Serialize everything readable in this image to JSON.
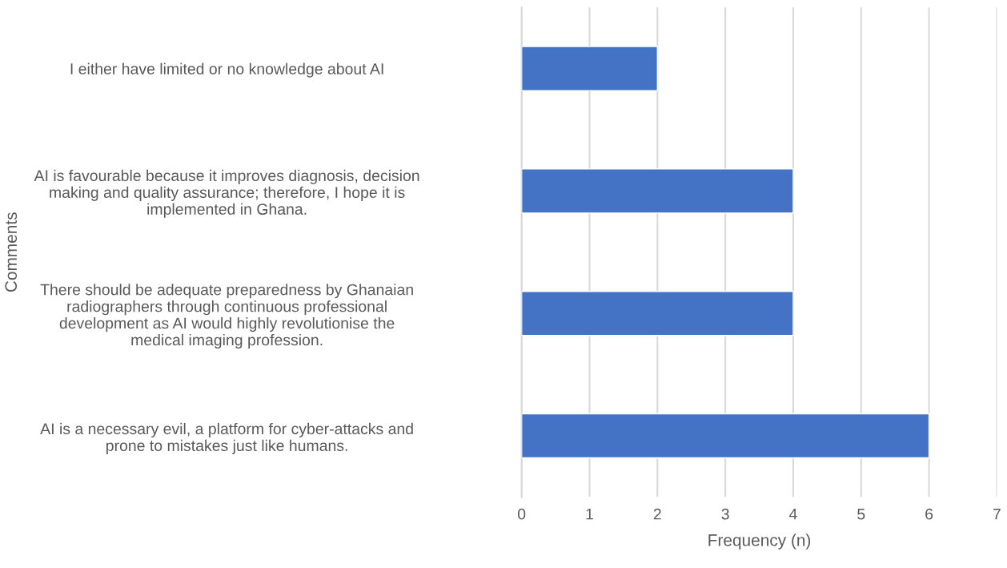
{
  "chart_data": {
    "type": "bar",
    "orientation": "horizontal",
    "xlabel": "Frequency (n)",
    "ylabel": "Comments",
    "categories": [
      "I either have limited or no knowledge about AI",
      "AI is favourable because it improves diagnosis, decision\nmaking and quality assurance; therefore, I hope it is\nimplemented in Ghana.",
      "There should be adequate preparedness by Ghanaian\nradiographers through continuous professional\ndevelopment as AI would highly revolutionise the\nmedical imaging profession.",
      "AI is a necessary evil, a platform for cyber-attacks and\nprone to mistakes just like humans."
    ],
    "values": [
      2,
      4,
      4,
      6
    ],
    "color": "#4472c4",
    "xlim": [
      0,
      7
    ],
    "xticks": [
      0,
      1,
      2,
      3,
      4,
      5,
      6,
      7
    ],
    "grid": "x",
    "legend": false
  }
}
